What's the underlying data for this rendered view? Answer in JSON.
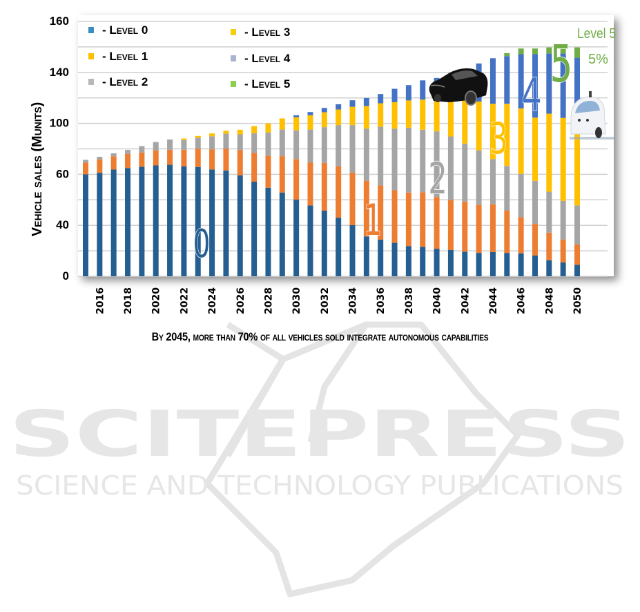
{
  "chart_data": {
    "type": "bar",
    "stacked": true,
    "title": "",
    "xlabel": "",
    "ylabel": "Vehicle sales (Munits)",
    "ylim": [
      0,
      160
    ],
    "y_tick_labels": [
      "160",
      "140",
      "100",
      "60",
      "40",
      "0"
    ],
    "grid": true,
    "legend_position": "top-left",
    "categories": [
      2015,
      2016,
      2017,
      2018,
      2019,
      2020,
      2021,
      2022,
      2023,
      2024,
      2025,
      2026,
      2027,
      2028,
      2029,
      2030,
      2031,
      2032,
      2033,
      2034,
      2035,
      2036,
      2037,
      2038,
      2039,
      2040,
      2041,
      2042,
      2043,
      2044,
      2045,
      2046,
      2047,
      2048,
      2049,
      2050
    ],
    "x_tick_labels": [
      "2016",
      "2018",
      "2020",
      "2022",
      "2024",
      "2026",
      "2028",
      "2030",
      "2032",
      "2034",
      "2036",
      "2038",
      "2040",
      "2042",
      "2044",
      "2046",
      "2048",
      "2050"
    ],
    "series": [
      {
        "name": "- Level 0",
        "color": "#255e91",
        "legend_color": "#3a8fc0",
        "values": [
          64,
          65,
          67,
          68,
          68.7,
          69.6,
          70,
          69,
          68.6,
          67.1,
          66.4,
          63.4,
          59.4,
          55.6,
          52.6,
          48.1,
          44.5,
          41.2,
          36.8,
          32.1,
          25,
          23,
          21,
          19,
          18.5,
          17.3,
          16.6,
          15.5,
          14.7,
          15.2,
          14.7,
          14.4,
          13,
          10.1,
          8.7,
          7.2
        ]
      },
      {
        "name": "- Level 1",
        "color": "#ed7d31",
        "legend_color": "#ffc000",
        "values": [
          7.3,
          8.4,
          8.3,
          8.8,
          9,
          9.5,
          9.4,
          10.4,
          11.5,
          12.6,
          13.6,
          15.9,
          18.1,
          20.1,
          22.8,
          25.5,
          27,
          30,
          32.2,
          32.9,
          35,
          34,
          33,
          33.6,
          34.2,
          32.5,
          31.3,
          31.4,
          30.1,
          30,
          26.5,
          22.7,
          19.9,
          17.3,
          14.4,
          12.7
        ]
      },
      {
        "name": "- Level 2",
        "color": "#a5a5a5",
        "legend_color": "#b8b8b8",
        "values": [
          1.8,
          1.6,
          1.9,
          2.5,
          4,
          5.2,
          6.5,
          6.1,
          6.8,
          8.2,
          9.5,
          9.8,
          12.3,
          14.6,
          16.7,
          18,
          20.6,
          22.4,
          25.9,
          29.9,
          32.7,
          36.9,
          38.7,
          40.7,
          39.3,
          41.2,
          39.9,
          36.4,
          34.3,
          28.4,
          28.1,
          27.2,
          27,
          25.7,
          24.3,
          24.6
        ]
      },
      {
        "name": "- Level 3",
        "color": "#ffc000",
        "legend_color": "#f2d00f",
        "values": [
          0,
          0,
          0,
          0,
          0,
          0,
          0,
          1,
          1.2,
          1.8,
          1.9,
          2.9,
          4.5,
          5.7,
          7,
          8.2,
          9,
          9.4,
          9.8,
          11.5,
          14.2,
          14.7,
          16.6,
          17.1,
          18.9,
          19,
          25,
          31.7,
          30.6,
          34.7,
          39,
          41.1,
          39.7,
          49,
          52,
          55.5
        ]
      },
      {
        "name": "- Level 4",
        "color": "#4472c4",
        "legend_color": "#a9b5cf",
        "values": [
          0,
          0,
          0,
          0,
          0,
          0,
          0,
          0,
          0,
          0,
          0,
          0,
          0,
          0,
          0,
          1.3,
          2,
          2.7,
          3.3,
          4.1,
          5,
          5.8,
          8.4,
          9.6,
          12.1,
          14.5,
          14.2,
          15,
          23.9,
          28.6,
          29.9,
          34,
          39.8,
          37.7,
          40.4,
          37.2
        ]
      },
      {
        "name": "- Level 5",
        "color": "#70ad47",
        "legend_color": "#8cd050",
        "values": [
          0,
          0,
          0,
          0,
          0,
          0,
          0,
          0,
          0,
          0,
          0,
          0,
          0,
          0,
          0,
          0,
          0,
          0,
          0,
          0,
          0,
          0,
          0,
          0,
          0,
          0,
          0,
          0,
          0,
          0,
          1.9,
          3.6,
          3.6,
          3.9,
          3.9,
          6.5
        ]
      }
    ],
    "annotations": {
      "level_numerals": [
        "0",
        "1",
        "2",
        "3",
        "4",
        "5"
      ],
      "level5_label": "Level 5",
      "level5_share": "5%"
    }
  },
  "caption": "By 2045, more than 70% of all vehicles sold integrate autonomous capabilities",
  "watermark": {
    "title": "SCITEPRESS",
    "subtitle": "SCIENCE AND TECHNOLOGY PUBLICATIONS"
  }
}
